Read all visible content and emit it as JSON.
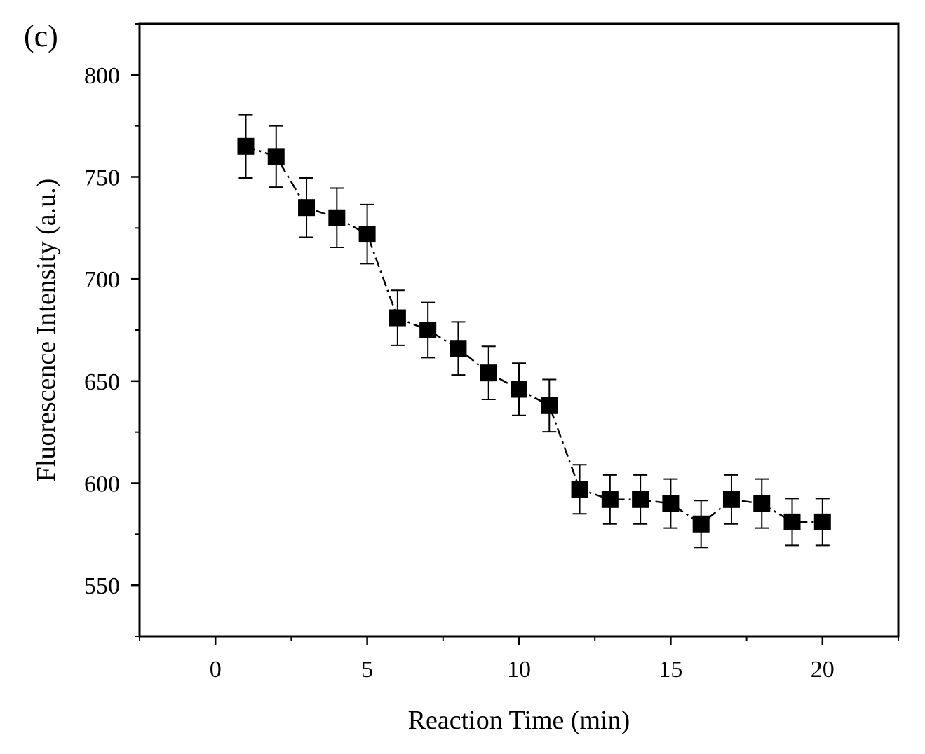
{
  "panel_label": "(c)",
  "chart_data": {
    "type": "line",
    "title": "",
    "xlabel": "Reaction Time (min)",
    "ylabel": "Fluorescence Intensity (a.u.)",
    "xlim": [
      -2.5,
      22.5
    ],
    "ylim": [
      525,
      825
    ],
    "xticks": [
      0,
      5,
      10,
      15,
      20
    ],
    "yticks": [
      550,
      600,
      650,
      700,
      750,
      800
    ],
    "grid": false,
    "legend": "none",
    "series": [
      {
        "name": "Fluorescence Intensity",
        "marker": "square",
        "line": "dash-dot",
        "x": [
          1,
          2,
          3,
          4,
          5,
          6,
          7,
          8,
          9,
          10,
          11,
          12,
          13,
          14,
          15,
          16,
          17,
          18,
          19,
          20
        ],
        "values": [
          765,
          760,
          735,
          730,
          722,
          681,
          675,
          666,
          654,
          646,
          638,
          597,
          592,
          592,
          590,
          580,
          592,
          590,
          581,
          581
        ],
        "errors": [
          15.5,
          15,
          14.5,
          14.5,
          14.5,
          13.5,
          13.5,
          13,
          13,
          12.8,
          12.8,
          12,
          12,
          12,
          12,
          11.5,
          12,
          12,
          11.5,
          11.5
        ]
      }
    ]
  }
}
